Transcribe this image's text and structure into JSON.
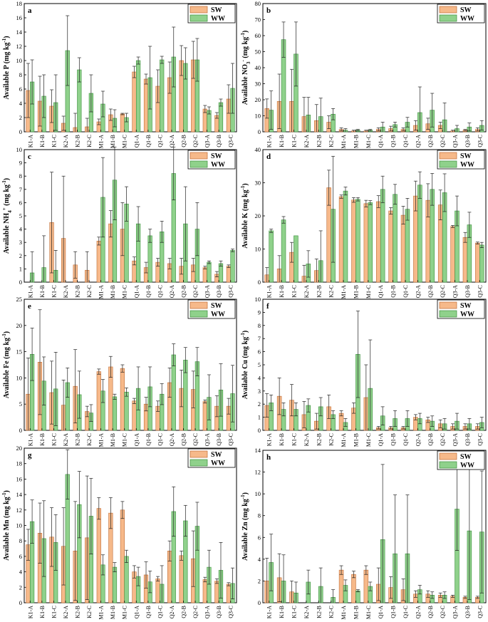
{
  "colors": {
    "sw": "#f6b98a",
    "ww": "#8fd18b",
    "sw_edge": "#c06c35",
    "ww_edge": "#3b8e3c",
    "axis": "#000000"
  },
  "chart_data": [
    {
      "type": "bar",
      "id": "a",
      "panel_label": "a",
      "ylabel": "Available P (mg kg-1)",
      "ylim": [
        0,
        18
      ],
      "yticks": [
        0,
        2,
        4,
        6,
        8,
        10,
        12,
        14,
        16,
        18
      ],
      "categories": [
        "K1-A",
        "K1-B",
        "K1-C",
        "K2-A",
        "K2-B",
        "K2-C",
        "M1-A",
        "M1-B",
        "M1-C",
        "Q1-A",
        "Q1-B",
        "Q1-C",
        "Q2-A",
        "Q2-B",
        "Q2-C",
        "Q3-A",
        "Q3-B",
        "Q3-C"
      ],
      "series": [
        {
          "name": "SW",
          "values": [
            5.8,
            4.3,
            3.6,
            1.2,
            0.6,
            0.7,
            1.4,
            2.4,
            2.5,
            8.4,
            7.4,
            6.4,
            7.6,
            10.0,
            10.1,
            3.2,
            2.3,
            4.6
          ],
          "errors": [
            3.8,
            3.5,
            2.3,
            1.0,
            2.0,
            1.2,
            0.4,
            0.8,
            0.1,
            0.8,
            0.7,
            2.3,
            2.2,
            2.1,
            2.6,
            0.5,
            0.4,
            2.0
          ]
        },
        {
          "name": "WW",
          "values": [
            7.0,
            5.0,
            4.1,
            11.4,
            8.7,
            5.4,
            3.9,
            1.9,
            2.0,
            10.0,
            7.6,
            10.1,
            10.5,
            9.6,
            10.1,
            3.0,
            4.1,
            6.1
          ],
          "errors": [
            3.1,
            3.0,
            3.9,
            4.9,
            1.7,
            2.6,
            1.8,
            1.2,
            0.6,
            0.5,
            4.4,
            0.5,
            4.2,
            2.2,
            3.0,
            0.5,
            0.5,
            3.5
          ]
        }
      ]
    },
    {
      "type": "bar",
      "id": "b",
      "panel_label": "b",
      "ylabel": "Available NO3- (mg kg-1)",
      "ylim": [
        0,
        80
      ],
      "yticks": [
        0,
        10,
        20,
        30,
        40,
        50,
        60,
        70,
        80
      ],
      "categories": [
        "K1-A",
        "K1-B",
        "K1-C",
        "K2-A",
        "K2-B",
        "K2-C",
        "M1-A",
        "M1-B",
        "M1-C",
        "Q1-A",
        "Q1-B",
        "Q1-C",
        "Q2-A",
        "Q2-B",
        "Q2-C",
        "Q3-A",
        "Q3-B",
        "Q3-C"
      ],
      "series": [
        {
          "name": "SW",
          "values": [
            14.5,
            19.0,
            19.0,
            9.5,
            7.0,
            6.0,
            1.5,
            0.5,
            0.5,
            1.5,
            2.0,
            1.5,
            4.0,
            5.0,
            4.0,
            0.5,
            1.0,
            1.5
          ],
          "errors": [
            6.0,
            17.0,
            20.0,
            12.0,
            10.0,
            4.0,
            1.0,
            0.5,
            0.5,
            1.0,
            1.5,
            1.0,
            3.0,
            3.5,
            2.0,
            0.5,
            0.5,
            1.0
          ]
        },
        {
          "name": "WW",
          "values": [
            13.5,
            57.5,
            48.5,
            10.5,
            9.5,
            11.0,
            1.0,
            1.0,
            1.0,
            3.0,
            4.5,
            6.0,
            12.0,
            13.5,
            7.5,
            2.0,
            3.0,
            4.0
          ],
          "errors": [
            12.0,
            11.0,
            20.0,
            11.0,
            11.5,
            3.5,
            1.0,
            0.5,
            0.5,
            3.0,
            1.5,
            3.0,
            16.0,
            10.5,
            10.5,
            2.0,
            2.5,
            3.0
          ]
        }
      ]
    },
    {
      "type": "bar",
      "id": "c",
      "panel_label": "c",
      "ylabel": "Available NH4+ (mg kg-1)",
      "ylim": [
        0,
        10
      ],
      "yticks": [
        0,
        1,
        2,
        3,
        4,
        5,
        6,
        7,
        8,
        9,
        10
      ],
      "categories": [
        "K1-A",
        "K1-B",
        "K1-C",
        "K2-A",
        "K2-B",
        "K2-C",
        "M1-A",
        "M1-B",
        "M1-C",
        "Q1-A",
        "Q1-B",
        "Q1-C",
        "Q2-A",
        "Q2-B",
        "Q2-C",
        "Q3-A",
        "Q3-B",
        "Q3-C"
      ],
      "series": [
        {
          "name": "SW",
          "values": [
            0.0,
            0.0,
            4.5,
            3.3,
            1.3,
            0.9,
            3.1,
            4.4,
            4.0,
            1.6,
            1.1,
            1.5,
            1.4,
            1.2,
            1.3,
            1.1,
            0.6,
            1.2
          ],
          "errors": [
            0.0,
            0.0,
            3.8,
            4.7,
            1.0,
            1.4,
            0.3,
            1.0,
            2.0,
            0.3,
            0.4,
            0.3,
            0.4,
            0.6,
            0.5,
            0.1,
            0.2,
            0.1
          ]
        },
        {
          "name": "WW",
          "values": [
            0.7,
            1.1,
            0.9,
            0.0,
            0.0,
            0.0,
            6.4,
            7.7,
            5.9,
            4.4,
            3.5,
            3.8,
            8.2,
            4.4,
            4.0,
            1.5,
            1.4,
            2.4
          ],
          "errors": [
            1.6,
            2.4,
            1.5,
            0.0,
            0.0,
            0.0,
            3.0,
            3.0,
            1.3,
            1.3,
            0.5,
            0.8,
            2.0,
            2.8,
            2.0,
            0.1,
            0.2,
            0.1
          ]
        }
      ]
    },
    {
      "type": "bar",
      "id": "d",
      "panel_label": "d",
      "ylabel": "Available K (mg kg-1)",
      "ylim": [
        0,
        40
      ],
      "yticks": [
        0,
        10,
        20,
        30,
        40
      ],
      "categories": [
        "K1-A",
        "K1-B",
        "K1-C",
        "K2-A",
        "K2-B",
        "K2-C",
        "M1-A",
        "M1-B",
        "M1-C",
        "Q1-A",
        "Q1-B",
        "Q1-C",
        "Q2-A",
        "Q2-B",
        "Q2-C",
        "Q3-A",
        "Q3-B",
        "Q3-C"
      ],
      "series": [
        {
          "name": "SW",
          "values": [
            2.2,
            4.0,
            9.0,
            1.8,
            3.5,
            28.5,
            25.8,
            24.8,
            23.7,
            24.3,
            21.5,
            20.2,
            26.0,
            24.7,
            23.3,
            16.8,
            13.5,
            11.8
          ],
          "errors": [
            2.2,
            4.0,
            3.0,
            3.3,
            3.5,
            5.3,
            0.5,
            0.7,
            1.0,
            1.8,
            1.0,
            2.7,
            4.5,
            5.0,
            4.5,
            0.3,
            1.5,
            0.3
          ]
        },
        {
          "name": "WW",
          "values": [
            15.5,
            18.8,
            14.0,
            5.5,
            6.5,
            22.0,
            27.5,
            25.0,
            24.0,
            28.0,
            26.5,
            22.0,
            29.3,
            28.0,
            27.0,
            21.5,
            17.3,
            11.2
          ],
          "errors": [
            0.5,
            1.0,
            0.0,
            4.0,
            9.0,
            16.0,
            1.2,
            0.5,
            0.6,
            4.0,
            3.0,
            3.3,
            4.0,
            4.8,
            5.7,
            4.5,
            3.8,
            0.8
          ]
        }
      ]
    },
    {
      "type": "bar",
      "id": "e",
      "panel_label": "e",
      "ylabel": "Available Fe (mg kg-1)",
      "ylim": [
        0,
        25
      ],
      "yticks": [
        0,
        5,
        10,
        15,
        20,
        25
      ],
      "categories": [
        "K1-A",
        "K1-B",
        "K1-C",
        "K2-A",
        "K2-B",
        "K2-C",
        "M1-A",
        "M1-B",
        "M1-C",
        "Q1-A",
        "Q1-B",
        "Q1-C",
        "Q2-A",
        "Q2-B",
        "Q2-C",
        "Q3-A",
        "Q3-B",
        "Q3-C"
      ],
      "series": [
        {
          "name": "SW",
          "values": [
            6.9,
            13.0,
            7.2,
            4.8,
            8.4,
            3.6,
            11.2,
            12.1,
            11.8,
            5.6,
            5.0,
            4.6,
            9.1,
            8.0,
            7.8,
            5.5,
            4.6,
            4.6
          ],
          "errors": [
            6.9,
            10.0,
            6.0,
            4.8,
            7.0,
            1.0,
            0.5,
            2.0,
            0.7,
            0.5,
            1.3,
            1.0,
            2.8,
            3.5,
            3.5,
            0.3,
            2.0,
            1.5
          ]
        },
        {
          "name": "WW",
          "values": [
            14.5,
            9.4,
            7.9,
            9.1,
            6.8,
            3.3,
            7.5,
            6.4,
            7.3,
            8.0,
            8.3,
            6.9,
            14.4,
            13.4,
            13.1,
            6.3,
            7.7,
            7.0
          ],
          "errors": [
            5.0,
            4.6,
            7.0,
            2.8,
            4.5,
            1.6,
            2.2,
            0.5,
            0.8,
            4.1,
            3.8,
            2.0,
            2.1,
            2.4,
            2.7,
            4.3,
            5.0,
            5.4
          ]
        }
      ]
    },
    {
      "type": "bar",
      "id": "f",
      "panel_label": "f",
      "ylabel": "Available Cu (mg kg-1)",
      "ylim": [
        0,
        10
      ],
      "yticks": [
        0,
        1,
        2,
        3,
        4,
        5,
        6,
        7,
        8,
        9,
        10
      ],
      "categories": [
        "K1-A",
        "K1-B",
        "K1-C",
        "K2-A",
        "K2-B",
        "K2-C",
        "M1-A",
        "M1-B",
        "M1-C",
        "Q1-A",
        "Q1-B",
        "Q1-C",
        "Q2-A",
        "Q2-B",
        "Q2-C",
        "Q3-A",
        "Q3-B",
        "Q3-C"
      ],
      "series": [
        {
          "name": "SW",
          "values": [
            1.9,
            2.6,
            2.3,
            1.2,
            0.7,
            1.8,
            1.3,
            1.7,
            2.5,
            0.2,
            0.2,
            0.2,
            1.0,
            0.8,
            0.5,
            0.3,
            0.3,
            0.3
          ],
          "errors": [
            0.9,
            1.4,
            1.2,
            1.0,
            0.6,
            0.9,
            0.2,
            0.4,
            2.5,
            0.1,
            0.1,
            0.1,
            0.2,
            0.2,
            0.3,
            0.2,
            0.2,
            0.2
          ]
        },
        {
          "name": "WW",
          "values": [
            2.1,
            1.6,
            1.6,
            1.9,
            1.8,
            1.2,
            0.6,
            5.8,
            3.2,
            1.1,
            0.9,
            0.9,
            0.9,
            0.7,
            0.5,
            0.7,
            0.5,
            0.6
          ],
          "errors": [
            0.6,
            0.5,
            0.5,
            0.5,
            0.7,
            0.3,
            0.3,
            3.3,
            3.7,
            0.7,
            0.6,
            0.6,
            0.4,
            0.4,
            0.4,
            0.6,
            0.4,
            0.4
          ]
        }
      ]
    },
    {
      "type": "bar",
      "id": "g",
      "panel_label": "g",
      "ylabel": "Available Mn (mg kg-1)",
      "ylim": [
        0,
        20
      ],
      "yticks": [
        0,
        2,
        4,
        6,
        8,
        10,
        12,
        14,
        16,
        18,
        20
      ],
      "categories": [
        "K1-A",
        "K1-B",
        "K1-C",
        "K2-A",
        "K2-B",
        "K2-C",
        "M1-A",
        "M1-B",
        "M1-C",
        "Q1-A",
        "Q1-B",
        "Q1-C",
        "Q2-A",
        "Q2-B",
        "Q2-C",
        "Q3-A",
        "Q3-B",
        "Q3-C"
      ],
      "series": [
        {
          "name": "SW",
          "values": [
            7.5,
            9.0,
            8.5,
            7.3,
            6.7,
            8.4,
            12.2,
            11.6,
            12.0,
            4.0,
            3.6,
            3.1,
            6.7,
            6.1,
            5.7,
            3.0,
            2.8,
            2.4
          ],
          "errors": [
            2.0,
            3.9,
            3.8,
            5.0,
            6.4,
            8.0,
            1.4,
            2.0,
            1.1,
            0.8,
            1.7,
            0.3,
            1.3,
            0.6,
            3.6,
            0.3,
            0.3,
            0.2
          ]
        },
        {
          "name": "WW",
          "values": [
            10.5,
            8.3,
            7.8,
            16.6,
            12.7,
            11.2,
            4.9,
            4.6,
            6.0,
            3.4,
            2.7,
            2.4,
            11.8,
            10.6,
            9.9,
            4.6,
            4.2,
            2.5
          ],
          "errors": [
            2.8,
            4.9,
            3.6,
            3.2,
            4.3,
            4.9,
            1.3,
            0.6,
            0.8,
            1.2,
            1.4,
            2.4,
            3.2,
            2.0,
            3.1,
            2.2,
            3.6,
            2.0
          ]
        }
      ]
    },
    {
      "type": "bar",
      "id": "h",
      "panel_label": "h",
      "ylabel": "Available Zn (mg kg-1)",
      "ylim": [
        0,
        14
      ],
      "yticks": [
        0,
        2,
        4,
        6,
        8,
        10,
        12,
        14
      ],
      "categories": [
        "K1-A",
        "K1-B",
        "K1-C",
        "K2-A",
        "K2-B",
        "K2-C",
        "M1-A",
        "M1-B",
        "M1-C",
        "Q1-A",
        "Q1-B",
        "Q1-C",
        "Q2-A",
        "Q2-B",
        "Q2-C",
        "Q3-A",
        "Q3-B",
        "Q3-C"
      ],
      "series": [
        {
          "name": "SW",
          "values": [
            2.0,
            2.3,
            1.0,
            0.0,
            0.0,
            0.0,
            3.0,
            2.6,
            3.0,
            1.7,
            1.4,
            1.2,
            0.8,
            0.8,
            0.7,
            0.6,
            0.5,
            0.5
          ],
          "errors": [
            2.1,
            2.2,
            1.0,
            0.0,
            0.0,
            0.0,
            0.4,
            0.3,
            0.4,
            1.5,
            1.0,
            1.0,
            0.3,
            0.3,
            0.2,
            0.1,
            0.1,
            0.1
          ]
        },
        {
          "name": "WW",
          "values": [
            3.7,
            2.0,
            0.9,
            1.9,
            1.5,
            0.5,
            1.6,
            1.1,
            1.5,
            5.8,
            4.5,
            4.5,
            1.2,
            0.7,
            0.7,
            8.6,
            6.6,
            6.5
          ],
          "errors": [
            2.6,
            2.4,
            1.0,
            1.1,
            1.7,
            0.7,
            0.5,
            0.1,
            0.4,
            6.9,
            5.4,
            5.4,
            0.4,
            0.3,
            0.3,
            3.8,
            6.3,
            5.6
          ]
        }
      ]
    }
  ]
}
